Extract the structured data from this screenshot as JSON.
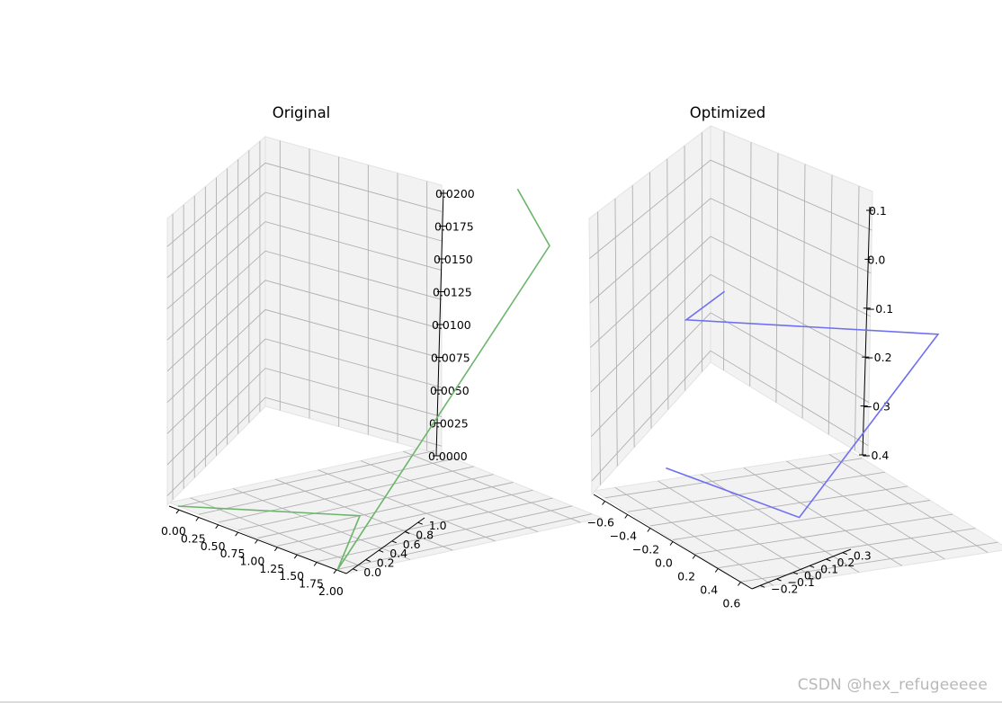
{
  "watermark": "CSDN @hex_refugeeeee",
  "chart_data": [
    {
      "type": "line3d",
      "title": "Original",
      "color": "#6cb56c",
      "x_ticks": [
        "0.00",
        "0.25",
        "0.50",
        "0.75",
        "1.00",
        "1.25",
        "1.50",
        "1.75",
        "2.00"
      ],
      "y_ticks": [
        "0.0",
        "0.2",
        "0.4",
        "0.6",
        "0.8",
        "1.0"
      ],
      "z_ticks": [
        "0.0000",
        "0.0025",
        "0.0050",
        "0.0075",
        "0.0100",
        "0.0125",
        "0.0150",
        "0.0175",
        "0.0200"
      ],
      "xlim": [
        0,
        2
      ],
      "ylim": [
        0,
        1.0
      ],
      "zlim": [
        0,
        0.02
      ],
      "x": [
        0.1,
        1.0,
        1.9,
        1.7,
        1.05
      ],
      "y": [
        0.0,
        0.4,
        0.0,
        0.9,
        1.0
      ],
      "z": [
        0.0,
        0.0,
        0.0,
        0.019,
        0.021
      ]
    },
    {
      "type": "line3d",
      "title": "Optimized",
      "color": "#6f6ff2",
      "x_ticks": [
        "−0.6",
        "−0.4",
        "−0.2",
        "0.0",
        "0.2",
        "0.4",
        "0.6"
      ],
      "y_ticks": [
        "−0.2",
        "−0.1",
        "0.0",
        "0.1",
        "0.2",
        "0.3"
      ],
      "z_ticks": [
        "−0.4",
        "−0.3",
        "−0.2",
        "−0.1",
        "0.0",
        "0.1"
      ],
      "xlim": [
        -0.7,
        0.7
      ],
      "ylim": [
        -0.25,
        0.35
      ],
      "zlim": [
        -0.4,
        0.13
      ],
      "x": [
        -0.25,
        0.55,
        0.45,
        -0.45,
        -0.3
      ],
      "y": [
        -0.2,
        -0.1,
        0.25,
        -0.1,
        -0.05
      ],
      "z": [
        -0.3,
        -0.3,
        0.0,
        -0.05,
        0.02
      ]
    }
  ]
}
